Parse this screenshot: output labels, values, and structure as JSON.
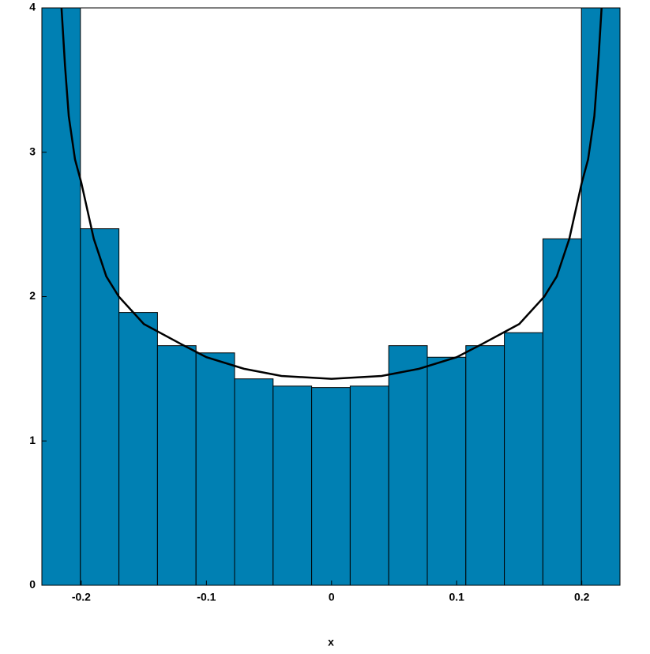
{
  "chart_data": {
    "type": "histogram",
    "bins": [
      -0.2315,
      -0.2007,
      -0.1699,
      -0.1391,
      -0.1083,
      -0.0775,
      -0.0467,
      -0.0159,
      0.0149,
      0.0457,
      0.0765,
      0.1073,
      0.1381,
      0.1689,
      0.1997,
      0.2305
    ],
    "values": [
      4,
      2.47,
      1.89,
      1.66,
      1.61,
      1.43,
      1.38,
      1.37,
      1.38,
      1.66,
      1.58,
      1.66,
      1.75,
      2.4,
      4
    ],
    "color": "#0080b3",
    "line": {
      "color": "#000000",
      "x": [
        -0.2158,
        -0.213,
        -0.21,
        -0.205,
        -0.2,
        -0.19,
        -0.18,
        -0.17,
        -0.15,
        -0.12,
        -0.1,
        -0.07,
        -0.04,
        0,
        0.04,
        0.07,
        0.1,
        0.12,
        0.15,
        0.17,
        0.18,
        0.19,
        0.2,
        0.205,
        0.21,
        0.213,
        0.2158
      ],
      "y": [
        4.0,
        3.6,
        3.25,
        2.95,
        2.79,
        2.4,
        2.14,
        2.0,
        1.81,
        1.67,
        1.58,
        1.5,
        1.45,
        1.43,
        1.45,
        1.5,
        1.58,
        1.67,
        1.81,
        2.0,
        2.14,
        2.4,
        2.79,
        2.95,
        3.25,
        3.6,
        4.0
      ]
    },
    "xlabel": "x",
    "xlim": [
      -0.2315,
      0.2305
    ],
    "xticks": [
      -0.2,
      -0.1,
      0,
      0.1,
      0.2
    ],
    "ylim": [
      0,
      4
    ],
    "yticks": [
      0,
      1,
      2,
      3,
      4
    ]
  }
}
